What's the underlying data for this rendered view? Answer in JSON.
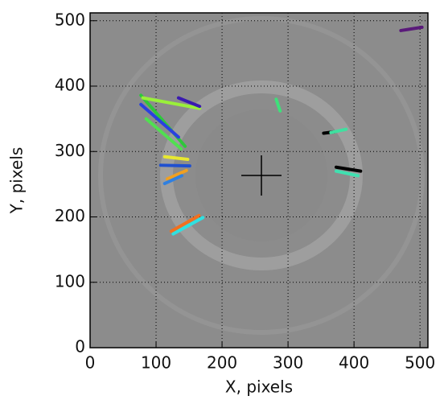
{
  "chart_data": {
    "type": "line",
    "xlabel": "X, pixels",
    "ylabel": "Y, pixels",
    "xlim": [
      0,
      512
    ],
    "ylim": [
      0,
      512
    ],
    "xticks": [
      0,
      100,
      200,
      300,
      400,
      500
    ],
    "yticks": [
      0,
      100,
      200,
      300,
      400,
      500
    ],
    "grid": true,
    "series": [
      {
        "color": "#5a1a7a",
        "x": [
          471,
          503
        ],
        "values": [
          485,
          490
        ]
      },
      {
        "color": "#3ee07a",
        "x": [
          282,
          288
        ],
        "values": [
          380,
          362
        ]
      },
      {
        "color": "#000000",
        "x": [
          354,
          370
        ],
        "values": [
          328,
          330
        ]
      },
      {
        "color": "#40e0a0",
        "x": [
          365,
          388
        ],
        "values": [
          329,
          334
        ]
      },
      {
        "color": "#000000",
        "x": [
          373,
          410
        ],
        "values": [
          276,
          270
        ]
      },
      {
        "color": "#40e0b0",
        "x": [
          373,
          406
        ],
        "values": [
          270,
          263
        ]
      },
      {
        "color": "#2ec83a",
        "x": [
          77,
          144
        ],
        "values": [
          386,
          308
        ]
      },
      {
        "color": "#9af03a",
        "x": [
          80,
          166
        ],
        "values": [
          382,
          366
        ]
      },
      {
        "color": "#3a1ab0",
        "x": [
          134,
          166
        ],
        "values": [
          382,
          369
        ]
      },
      {
        "color": "#2a40e0",
        "x": [
          77,
          134
        ],
        "values": [
          372,
          322
        ]
      },
      {
        "color": "#50e050",
        "x": [
          85,
          138
        ],
        "values": [
          350,
          304
        ]
      },
      {
        "color": "#e8e830",
        "x": [
          113,
          148
        ],
        "values": [
          292,
          288
        ]
      },
      {
        "color": "#2050d0",
        "x": [
          107,
          151
        ],
        "values": [
          279,
          278
        ]
      },
      {
        "color": "#f0a020",
        "x": [
          117,
          146
        ],
        "values": [
          258,
          271
        ]
      },
      {
        "color": "#3080e0",
        "x": [
          113,
          139
        ],
        "values": [
          251,
          263
        ]
      },
      {
        "color": "#f07020",
        "x": [
          123,
          165
        ],
        "values": [
          178,
          202
        ]
      },
      {
        "color": "#30e0e0",
        "x": [
          126,
          171
        ],
        "values": [
          174,
          199
        ]
      }
    ]
  }
}
